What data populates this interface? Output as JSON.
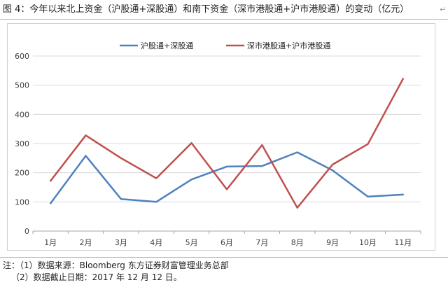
{
  "title": "图 4：今年以来北上资金（沪股通+深股通）和南下资金（深市港股通+沪市港股通）的变动（亿元）",
  "notes": {
    "line1": "注：（1）数据来源：Bloomberg 东方证券财富管理业务总部",
    "line2": "（2）数据截止日期：2017 年 12 月 12 日。"
  },
  "chart_data": {
    "type": "line",
    "categories": [
      "1月",
      "2月",
      "3月",
      "4月",
      "5月",
      "6月",
      "7月",
      "8月",
      "9月",
      "10月",
      "11月"
    ],
    "ylim": [
      0,
      600
    ],
    "yticks": [
      0,
      100,
      200,
      300,
      400,
      500,
      600
    ],
    "grid": true,
    "legend_position": "top",
    "series": [
      {
        "name": "沪股通+深股通",
        "color": "#4f81bd",
        "values": [
          95,
          258,
          110,
          100,
          177,
          221,
          223,
          270,
          208,
          118,
          125
        ]
      },
      {
        "name": "深市港股通+沪市港股通",
        "color": "#c0504d",
        "values": [
          172,
          328,
          250,
          181,
          302,
          143,
          295,
          80,
          228,
          298,
          522
        ]
      }
    ]
  }
}
